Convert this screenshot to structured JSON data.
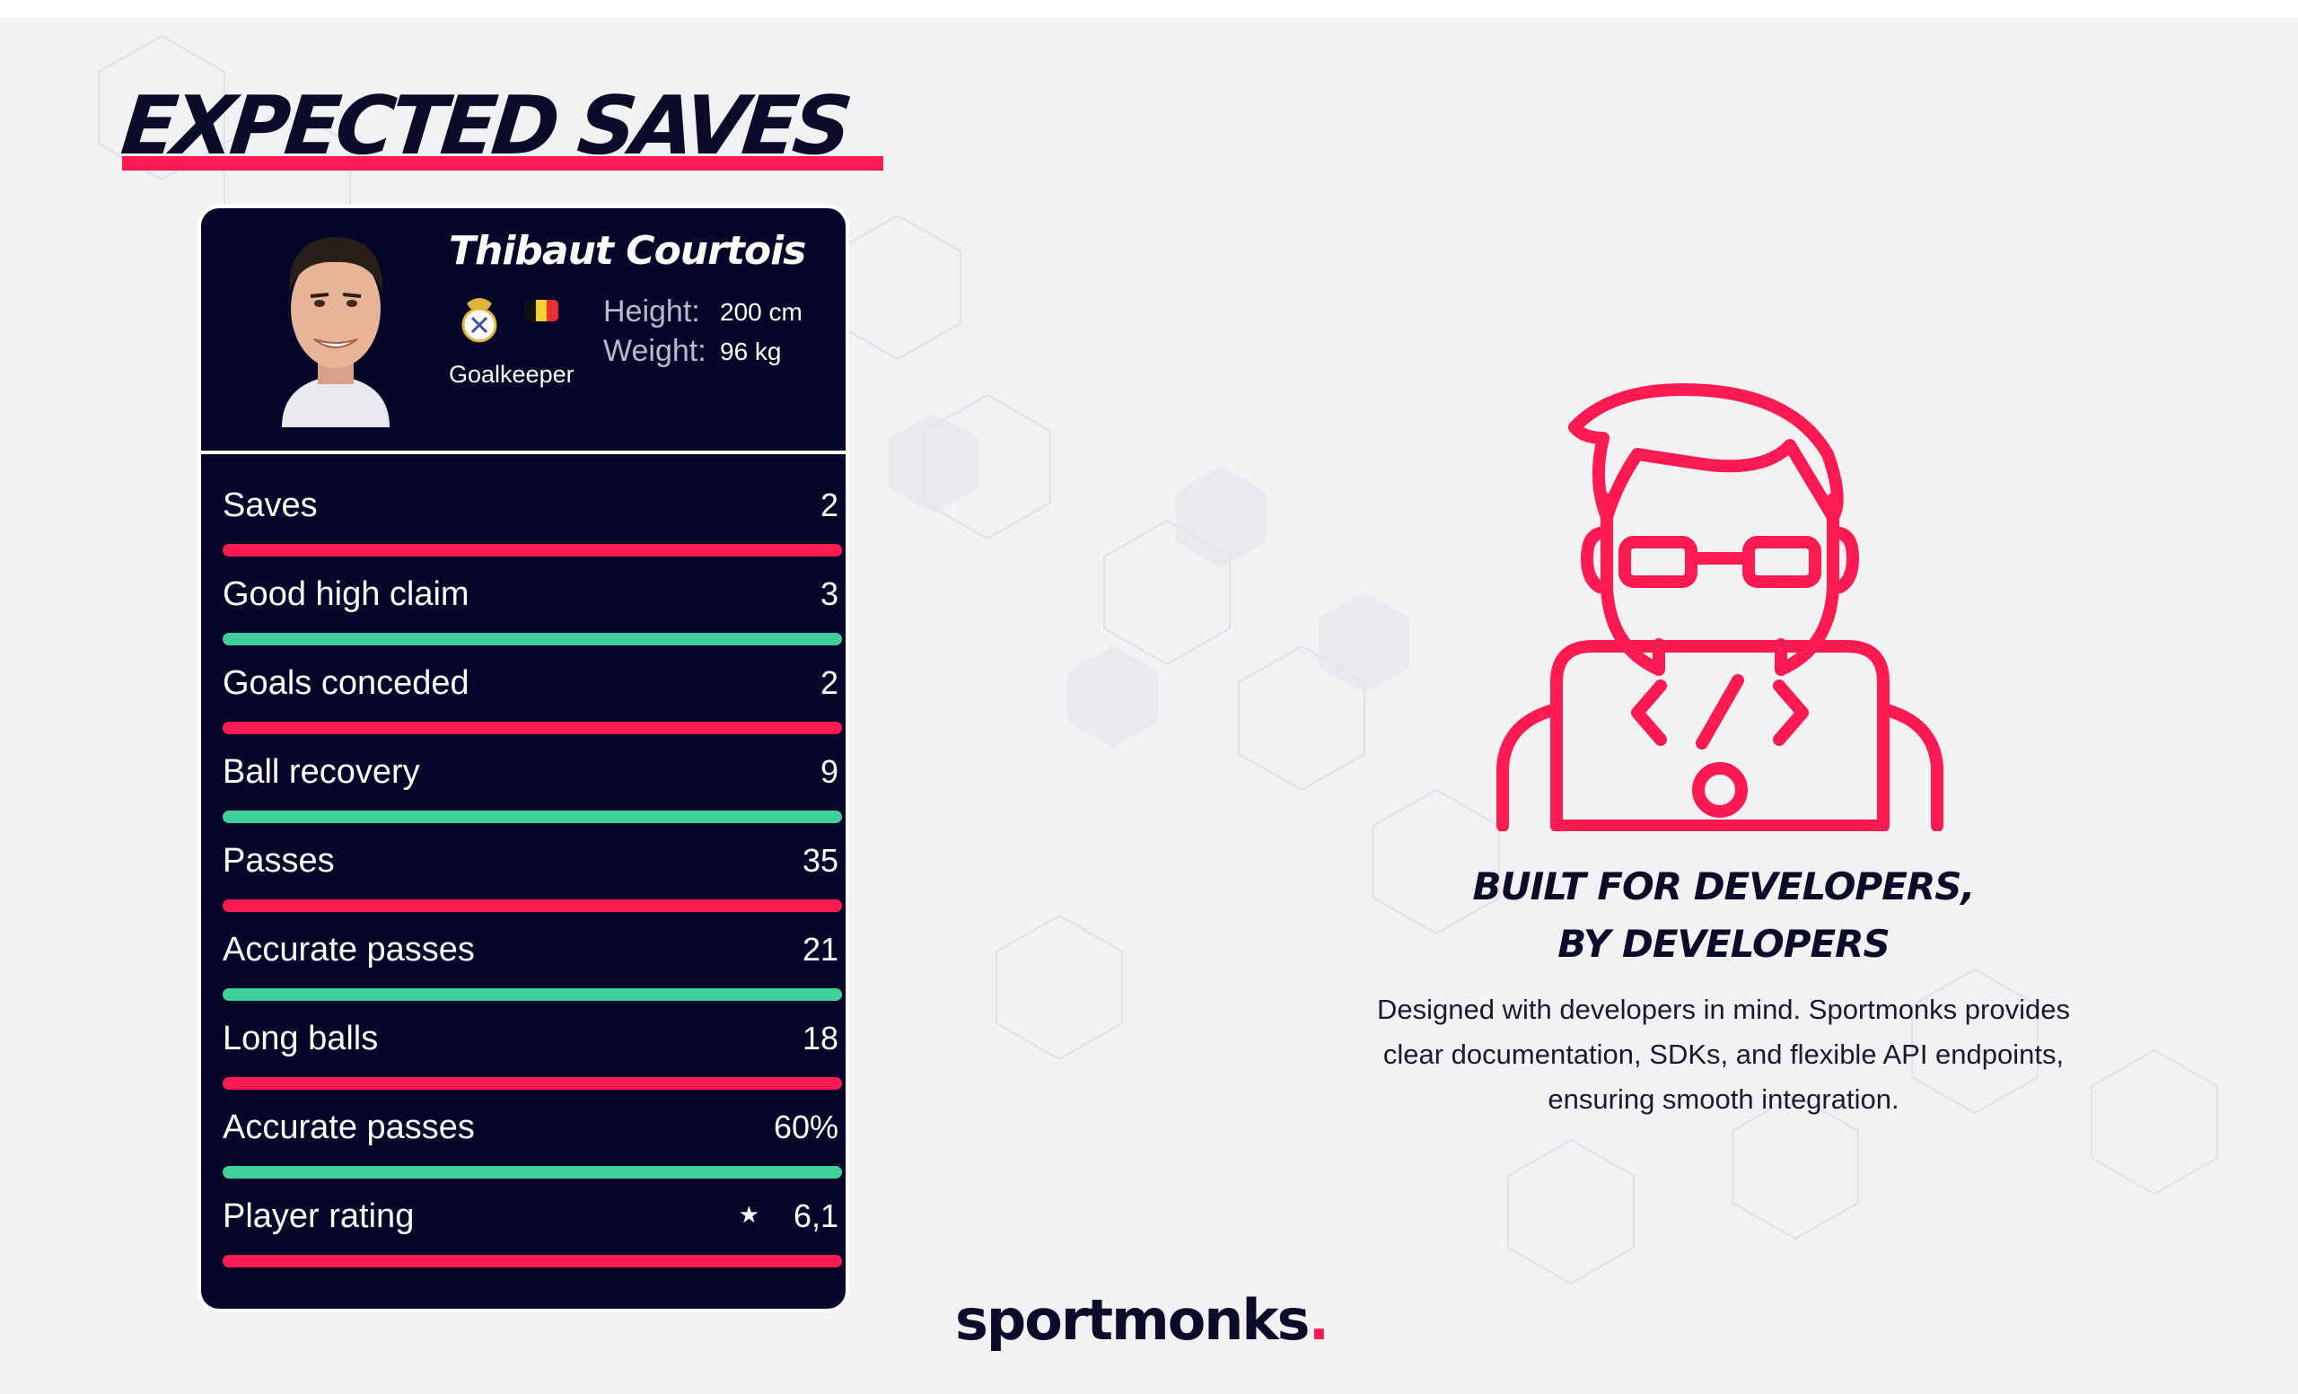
{
  "title": "EXPECTED SAVES",
  "player": {
    "name": "Thibaut Courtois",
    "position": "Goalkeeper",
    "height_label": "Height:",
    "height_value": "200 cm",
    "weight_label": "Weight:",
    "weight_value": "96 kg",
    "club_icon": "real-madrid-crest-icon",
    "country_flag": "belgium-flag-icon"
  },
  "stats": [
    {
      "label": "Saves",
      "value": "2",
      "bar_color": "#ff1b51"
    },
    {
      "label": "Good high claim",
      "value": "3",
      "bar_color": "#3fd19a"
    },
    {
      "label": "Goals conceded",
      "value": "2",
      "bar_color": "#ff1b51"
    },
    {
      "label": "Ball recovery",
      "value": "9",
      "bar_color": "#3fd19a"
    },
    {
      "label": "Passes",
      "value": "35",
      "bar_color": "#ff1b51"
    },
    {
      "label": "Accurate passes",
      "value": "21",
      "bar_color": "#3fd19a"
    },
    {
      "label": "Long balls",
      "value": "18",
      "bar_color": "#ff1b51"
    },
    {
      "label": "Accurate passes",
      "value": "60%",
      "bar_color": "#3fd19a"
    },
    {
      "label": "Player rating",
      "value": "6,1",
      "bar_color": "#ff1b51",
      "icon": "star-icon"
    }
  ],
  "developers": {
    "icon": "developer-icon",
    "heading_line1": "BUILT FOR DEVELOPERS,",
    "heading_line2": "BY DEVELOPERS",
    "text_line1": "Designed with developers in mind. Sportmonks provides",
    "text_line2": "clear documentation, SDKs, and flexible API endpoints,",
    "text_line3": "ensuring smooth integration."
  },
  "brand": {
    "name": "sportmonks",
    "dot": ".",
    "accent_color": "#ff1b51",
    "navy_color": "#05052a",
    "green_color": "#3fd19a"
  }
}
